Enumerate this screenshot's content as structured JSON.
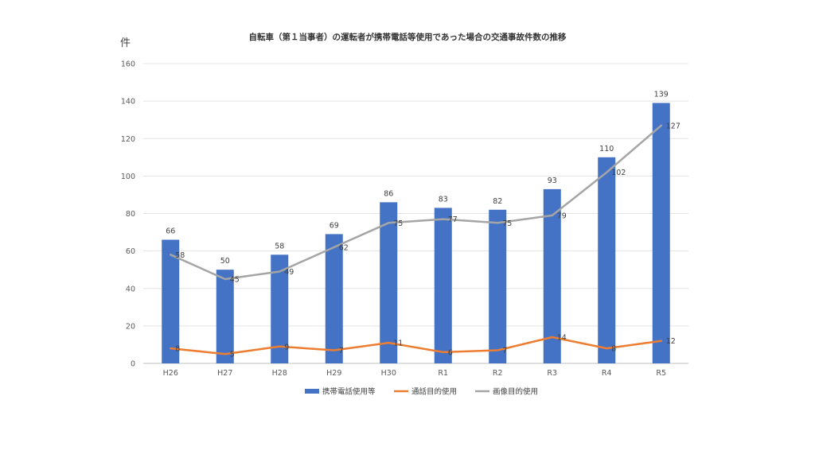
{
  "chart_data": {
    "type": "bar",
    "title": "自転車（第１当事者）の運転者が携帯電話等使用であった場合の交通事故件数の推移",
    "ylabel": "件",
    "ylim": [
      0,
      160
    ],
    "yticks": [
      0,
      20,
      40,
      60,
      80,
      100,
      120,
      140,
      160
    ],
    "grid": true,
    "legend_position": "bottom",
    "categories": [
      "H26",
      "H27",
      "H28",
      "H29",
      "H30",
      "R1",
      "R2",
      "R3",
      "R4",
      "R5"
    ],
    "series": [
      {
        "name": "携帯電話使用等",
        "kind": "bar",
        "color": "#4472C4",
        "values": [
          66,
          50,
          58,
          69,
          86,
          83,
          82,
          93,
          110,
          139
        ]
      },
      {
        "name": "通話目的使用",
        "kind": "line",
        "color": "#ED7D31",
        "values": [
          8,
          5,
          9,
          7,
          11,
          6,
          7,
          14,
          8,
          12
        ]
      },
      {
        "name": "画像目的使用",
        "kind": "line",
        "color": "#A5A5A5",
        "values": [
          58,
          45,
          49,
          62,
          75,
          77,
          75,
          79,
          102,
          127
        ]
      }
    ]
  }
}
